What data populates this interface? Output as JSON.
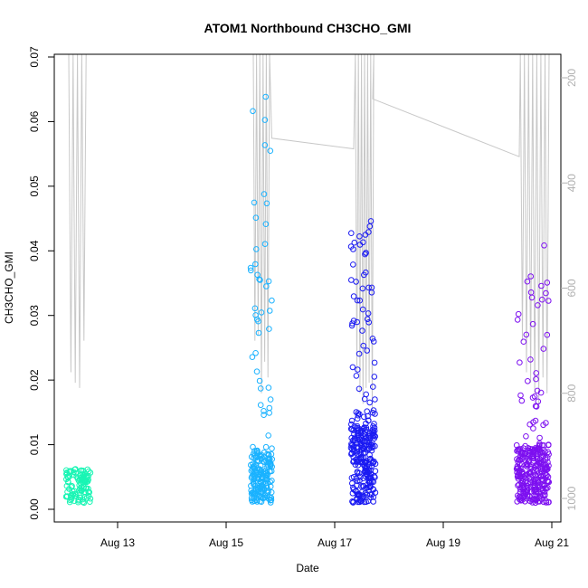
{
  "chart_data": {
    "type": "scatter",
    "title": "ATOM1 Northbound CH3CHO_GMI",
    "xlabel": "Date",
    "ylabel": "CH3CHO_GMI",
    "x_ticks": [
      "Aug 13",
      "Aug 15",
      "Aug 17",
      "Aug 19",
      "Aug 21"
    ],
    "y_ticks": [
      "0.00",
      "0.01",
      "0.02",
      "0.03",
      "0.04",
      "0.05",
      "0.06",
      "0.07"
    ],
    "y2_ticks": [
      "200",
      "400",
      "600",
      "800",
      "1000"
    ],
    "xlim": [
      "2016-08-12",
      "2016-08-21"
    ],
    "ylim": [
      0,
      0.07
    ],
    "y2lim": [
      1000,
      200
    ],
    "colors": {
      "flight1": "#19f5b4",
      "flight2": "#1ab2ff",
      "flight3": "#1b1bf2",
      "flight4": "#7d10f0",
      "pressure_line": "#c8c8c8"
    },
    "series": [
      {
        "color_key": "flight1",
        "x_range": [
          12.05,
          12.5
        ],
        "y_range": [
          0.001,
          0.0063
        ]
      },
      {
        "color_key": "flight2",
        "x_range": [
          15.45,
          15.85
        ],
        "y_range": [
          0.0015,
          0.068
        ]
      },
      {
        "color_key": "flight3",
        "x_range": [
          17.3,
          17.75
        ],
        "y_range": [
          0.0012,
          0.045
        ]
      },
      {
        "color_key": "flight4",
        "x_range": [
          20.35,
          20.95
        ],
        "y_range": [
          0.0008,
          0.041
        ]
      }
    ]
  }
}
